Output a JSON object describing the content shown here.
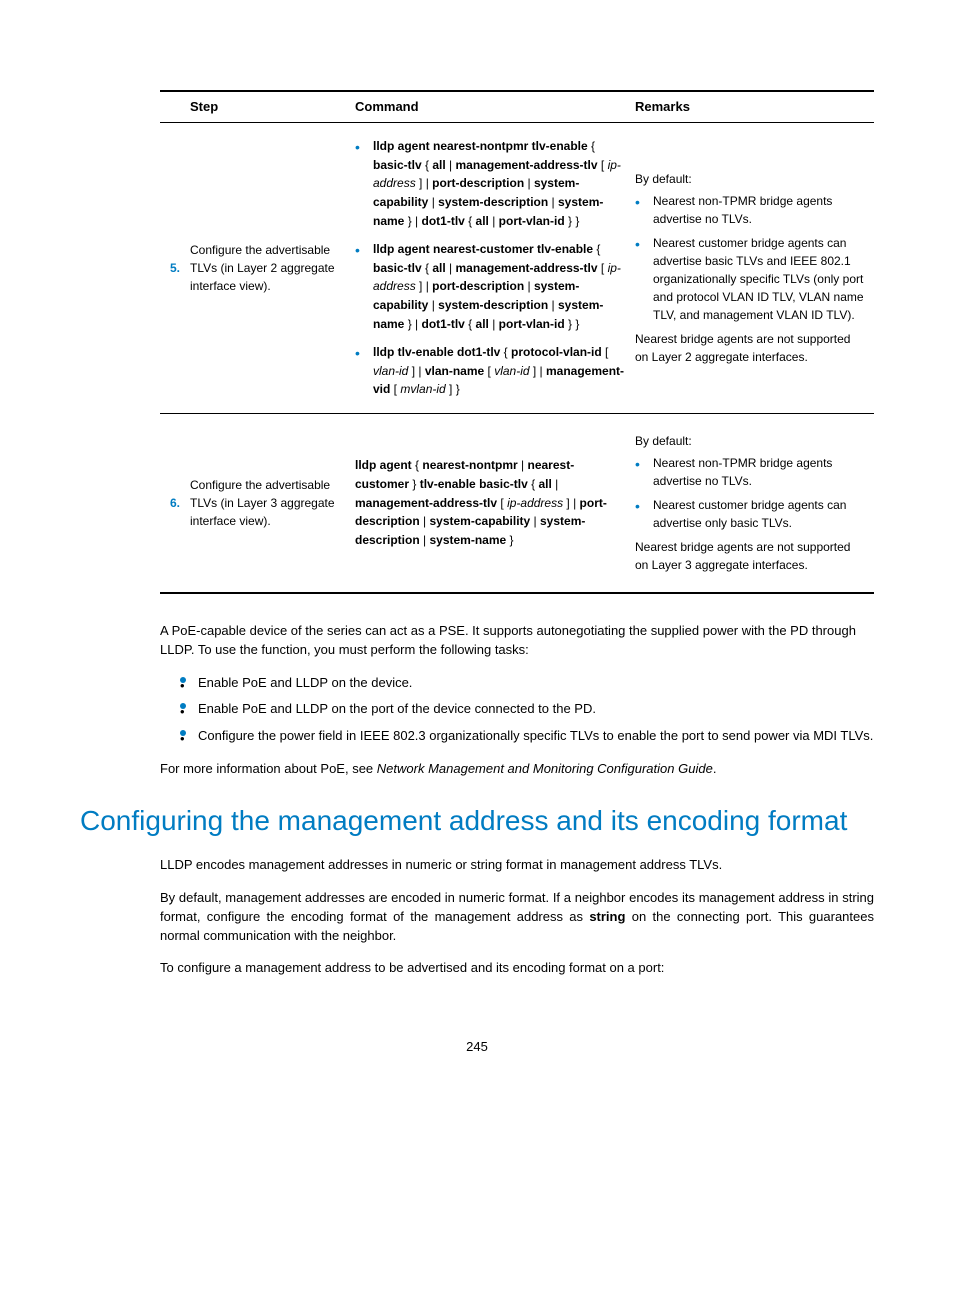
{
  "table": {
    "headers": {
      "step": "Step",
      "command": "Command",
      "remarks": "Remarks"
    },
    "rows": [
      {
        "num": "5.",
        "step_text": "Configure the advertisable TLVs (in Layer 2 aggregate interface view).",
        "cmd_html": "<ul class=\"cmd-list\"><li><span class=\"cmd-block\"><b>lldp agent nearest-nontpmr tlv-enable</b> { <b>basic-tlv</b> { <b>all</b> | <b>management-address-tlv</b> [ <i>ip-address</i> ] | <b>port-description</b> | <b>system-capability</b> | <b>system-description</b> | <b>system-name</b> } | <b>dot1-tlv</b> { <b>all</b> | <b>port-vlan-id</b> } }</span></li><li><span class=\"cmd-block\"><b>lldp agent nearest-customer tlv-enable</b> { <b>basic-tlv</b> { <b>all</b> | <b>management-address-tlv</b> [ <i>ip-address</i> ] | <b>port-description</b> | <b>system-capability</b> | <b>system-description</b> | <b>system-name</b> } | <b>dot1-tlv</b> { <b>all</b> | <b>port-vlan-id</b> } }</span></li><li><span class=\"cmd-block\"><b>lldp tlv-enable dot1-tlv</b> { <b>protocol-vlan-id</b> [ <i>vlan-id</i> ] | <b>vlan-name</b> [ <i>vlan-id</i> ] | <b>management-vid</b> [ <i>mvlan-id</i> ] }</span></li></ul>",
        "rem_html": "<p>By default:</p><ul><li>Nearest non-TPMR bridge agents advertise no TLVs.</li><li>Nearest customer bridge agents can advertise basic TLVs and IEEE 802.1 organizationally specific TLVs (only port and protocol VLAN ID TLV, VLAN name TLV, and management VLAN ID TLV).</li></ul><p>Nearest bridge agents are not supported on Layer 2 aggregate interfaces.</p>"
      },
      {
        "num": "6.",
        "step_text": "Configure the advertisable TLVs (in Layer 3 aggregate interface view).",
        "cmd_html": "<span class=\"cmd-block\"><b>lldp agent</b> { <b>nearest-nontpmr</b> | <b>nearest-customer</b> } <b>tlv-enable basic-tlv</b> { <b>all</b> | <b>management-address-tlv</b> [ <i>ip-address</i> ] | <b>port-description</b> | <b>system-capability</b> | <b>system-description</b> | <b>system-name</b> }</span>",
        "rem_html": "<p>By default:</p><ul><li>Nearest non-TPMR bridge agents advertise no TLVs.</li><li>Nearest customer bridge agents can advertise only basic TLVs.</li></ul><p>Nearest bridge agents are not supported on Layer 3 aggregate interfaces.</p>"
      }
    ]
  },
  "paras": {
    "p1": "A PoE-capable device of the series can act as a PSE. It supports autonegotiating the supplied power with the PD through LLDP. To use the function, you must perform the following tasks:",
    "bullets": [
      "Enable PoE and LLDP on the device.",
      "Enable PoE and LLDP on the port of the device connected to the PD.",
      "Configure the power field in IEEE 802.3 organizationally specific TLVs to enable the port to send power via MDI TLVs."
    ],
    "p2_html": "For more information about PoE, see <i>Network Management and Monitoring Configuration Guide</i>."
  },
  "heading": "Configuring the management address and its encoding format",
  "section_paras": {
    "s1": "LLDP encodes management addresses in numeric or string format in management address TLVs.",
    "s2_html": "By default, management addresses are encoded in numeric format. If a neighbor encodes its management address in string format, configure the encoding format of the management address as <b>string</b> on the connecting port. This guarantees normal communication with the neighbor.",
    "s3": "To configure a management address to be advertised and its encoding format on a port:"
  },
  "pagenum": "245"
}
